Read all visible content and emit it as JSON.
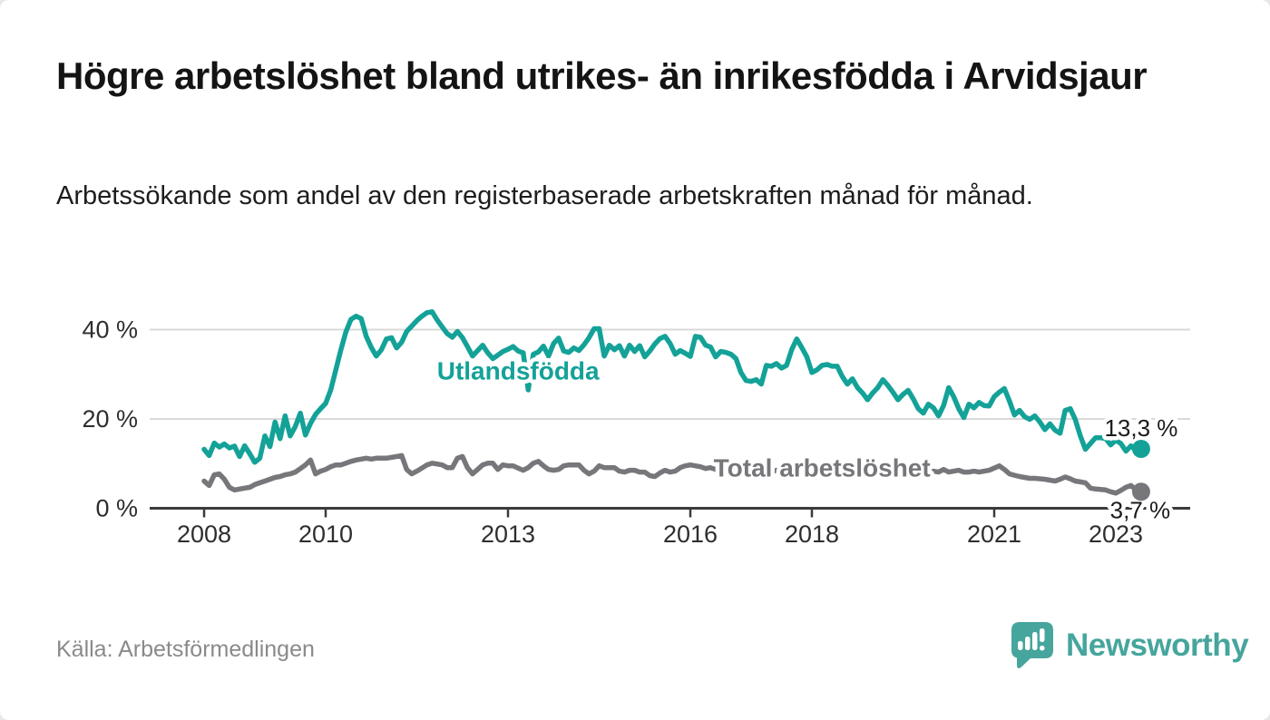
{
  "header": {
    "title": "Högre arbetslöshet bland utrikes- än inrikesfödda i Arvidsjaur",
    "subtitle": "Arbetssökande som andel av den registerbaserade arbetskraften månad för månad."
  },
  "footer": {
    "source": "Källa: Arbetsförmedlingen",
    "brand": "Newsworthy",
    "logo_icon": "speech-bubble-bar-chart-icon"
  },
  "colors": {
    "accent_teal": "#14a298",
    "series_gray": "#77777b",
    "axis": "#3b3b3b",
    "grid": "#d9d9d9",
    "value_label": "#1b1b1b",
    "brand_teal": "#46a59d",
    "background": "#ffffff"
  },
  "chart_data": {
    "type": "line",
    "title": "Högre arbetslöshet bland utrikes- än inrikesfödda i Arvidsjaur",
    "subtitle": "Arbetssökande som andel av den registerbaserade arbetskraften månad för månad.",
    "unit": "%",
    "frequency": "monthly",
    "x_start": "2008-01",
    "x_end": "2023-06",
    "start_year": 2008,
    "x_tick_years": [
      2008,
      2010,
      2013,
      2016,
      2018,
      2021,
      2023
    ],
    "x_tick_labels": [
      "2008",
      "2010",
      "2013",
      "2016",
      "2018",
      "2021",
      "2023"
    ],
    "y_ticks": [
      0,
      20,
      40
    ],
    "y_tick_labels": [
      "0 %",
      "20 %",
      "40 %"
    ],
    "ylim": [
      0,
      46
    ],
    "grid": "horizontal-only",
    "legend": "inline-series-labels",
    "series": [
      {
        "name": "Utlandsfödda",
        "color": "#14a298",
        "end_value": 13.3,
        "end_label": "13,3 %",
        "label_anchor": {
          "month_index": 62,
          "value": 30.8
        },
        "values_by_year": [
          [
            13.2,
            11.8,
            14.6,
            13.7,
            14.4,
            13.5,
            13.9,
            11.6,
            14.0,
            12.2,
            10.3,
            11.2
          ],
          [
            16.2,
            13.8,
            19.3,
            15.6,
            20.7,
            16.2,
            18.3,
            21.3,
            16.4,
            19.0,
            21.0,
            22.3
          ],
          [
            23.5,
            26.5,
            31.0,
            35.5,
            39.5,
            42.3,
            43.0,
            42.5,
            38.5,
            36.0,
            34.1,
            35.5
          ],
          [
            37.9,
            38.2,
            35.9,
            37.2,
            39.6,
            40.8,
            42.0,
            43.0,
            43.8,
            44.0,
            42.2,
            40.6
          ],
          [
            39.1,
            38.3,
            39.6,
            38.2,
            36.2,
            34.1,
            35.3,
            36.5,
            34.8,
            33.5,
            34.3,
            35.1
          ],
          [
            35.6,
            36.2,
            35.2,
            34.8,
            26.5,
            34.5,
            35.0,
            36.3,
            34.1,
            36.9,
            38.1,
            35.2
          ],
          [
            34.9,
            35.9,
            35.3,
            36.6,
            38.2,
            40.2,
            40.2,
            34.1,
            36.5,
            35.5,
            36.4,
            34.1
          ],
          [
            36.5,
            35.1,
            36.4,
            33.9,
            35.2,
            36.8,
            38.0,
            38.5,
            36.9,
            34.5,
            35.3,
            34.7
          ],
          [
            34.0,
            38.5,
            38.3,
            36.5,
            36.1,
            33.9,
            35.1,
            34.9,
            34.5,
            33.5,
            30.4,
            28.6
          ],
          [
            28.4,
            28.8,
            27.8,
            32.0,
            31.8,
            32.4,
            31.4,
            32.0,
            35.5,
            37.9,
            36.0,
            33.9
          ],
          [
            30.4,
            31.0,
            32.0,
            32.2,
            31.8,
            31.8,
            29.5,
            27.8,
            29.0,
            27.0,
            25.8,
            24.3
          ],
          [
            25.8,
            27.0,
            28.8,
            27.5,
            26.0,
            24.3,
            25.5,
            26.4,
            24.5,
            22.3,
            21.3,
            23.3
          ],
          [
            22.5,
            20.7,
            23.0,
            27.0,
            25.0,
            22.3,
            20.3,
            23.3,
            22.5,
            23.7,
            23.0,
            22.9
          ],
          [
            25.0,
            26.0,
            26.8,
            24.0,
            20.9,
            21.9,
            20.5,
            19.9,
            20.7,
            19.3,
            17.6,
            18.9
          ],
          [
            17.5,
            16.8,
            21.9,
            22.3,
            19.9,
            16.2,
            13.2,
            14.5,
            15.8,
            15.8,
            15.6,
            14.2
          ],
          [
            15.2,
            14.5,
            12.8,
            14.0,
            12.9,
            13.3
          ]
        ]
      },
      {
        "name": "Total arbetslöshet",
        "color": "#77777b",
        "end_value": 3.7,
        "end_label": "3,7 %",
        "label_anchor": {
          "month_index": 122,
          "value": 9.0
        },
        "values_by_year": [
          [
            6.1,
            5.1,
            7.5,
            7.7,
            6.5,
            4.7,
            4.1,
            4.3,
            4.5,
            4.7,
            5.3,
            5.7
          ],
          [
            6.1,
            6.5,
            6.9,
            7.1,
            7.5,
            7.7,
            8.1,
            8.9,
            9.7,
            10.8,
            7.7,
            8.3
          ],
          [
            8.7,
            9.3,
            9.7,
            9.7,
            10.1,
            10.5,
            10.8,
            11.0,
            11.2,
            11.0,
            11.2,
            11.2
          ],
          [
            11.2,
            11.4,
            11.6,
            11.8,
            8.7,
            7.7,
            8.3,
            9.0,
            9.7,
            10.1,
            9.9,
            9.7
          ],
          [
            9.1,
            9.1,
            11.2,
            11.6,
            9.1,
            7.7,
            8.7,
            9.7,
            10.1,
            10.1,
            8.7,
            9.7
          ],
          [
            9.5,
            9.5,
            9.0,
            8.5,
            9.1,
            10.1,
            10.5,
            9.5,
            8.7,
            8.5,
            8.7,
            9.5
          ],
          [
            9.7,
            9.7,
            9.7,
            8.5,
            7.7,
            8.3,
            9.5,
            9.1,
            9.1,
            9.1,
            8.3,
            8.1
          ],
          [
            8.5,
            8.5,
            8.1,
            8.1,
            7.3,
            7.1,
            7.9,
            8.5,
            8.1,
            8.3,
            9.1,
            9.5
          ],
          [
            9.7,
            9.5,
            9.3,
            8.9,
            9.1,
            8.7,
            8.5,
            8.9,
            9.1,
            8.7,
            8.5,
            8.3
          ],
          [
            8.7,
            8.9,
            8.5,
            8.3,
            8.1,
            8.5,
            8.3,
            8.7,
            8.9,
            8.5,
            8.3,
            8.1
          ],
          [
            8.3,
            8.5,
            8.1,
            7.9,
            7.7,
            7.9,
            8.1,
            8.3,
            8.1,
            7.9,
            8.1,
            8.3
          ],
          [
            8.5,
            8.3,
            8.1,
            8.3,
            8.1,
            7.9,
            8.1,
            8.3,
            8.1,
            7.9,
            8.1,
            8.3
          ],
          [
            8.3,
            8.1,
            8.7,
            8.1,
            8.3,
            8.5,
            8.1,
            8.1,
            8.3,
            8.1,
            8.3,
            8.5
          ],
          [
            9.0,
            9.5,
            8.7,
            7.7,
            7.4,
            7.1,
            6.9,
            6.7,
            6.7,
            6.6,
            6.5,
            6.3
          ],
          [
            6.1,
            6.5,
            7.0,
            6.6,
            6.1,
            5.9,
            5.7,
            4.5,
            4.3,
            4.2,
            4.1,
            3.7
          ],
          [
            3.4,
            4.0,
            4.7,
            5.1,
            4.1,
            3.7
          ]
        ]
      }
    ]
  }
}
